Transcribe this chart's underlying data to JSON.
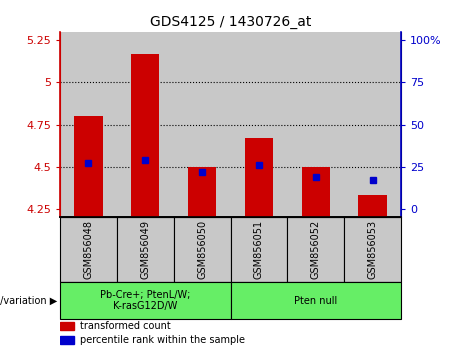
{
  "title": "GDS4125 / 1430726_at",
  "samples": [
    "GSM856048",
    "GSM856049",
    "GSM856050",
    "GSM856051",
    "GSM856052",
    "GSM856053"
  ],
  "red_values": [
    4.8,
    5.17,
    4.5,
    4.67,
    4.5,
    4.33
  ],
  "blue_values": [
    4.52,
    4.54,
    4.47,
    4.51,
    4.44,
    4.42
  ],
  "ylim": [
    4.2,
    5.3
  ],
  "yticks": [
    4.25,
    4.5,
    4.75,
    5.0,
    5.25
  ],
  "ytick_labels": [
    "4.25",
    "4.5",
    "4.75",
    "5",
    "5.25"
  ],
  "right_ytick_positions": [
    4.25,
    4.5,
    4.75,
    5.0,
    5.25
  ],
  "right_ytick_labels": [
    "0",
    "25",
    "50",
    "75",
    "100%"
  ],
  "gridlines": [
    4.5,
    4.75,
    5.0
  ],
  "bar_width": 0.5,
  "bar_color": "#cc0000",
  "dot_color": "#0000cc",
  "group1_label": "Pb-Cre+; PtenL/W;\nK-rasG12D/W",
  "group2_label": "Pten null",
  "group_bg_color": "#66ee66",
  "sample_bg_color": "#c8c8c8",
  "legend_red": "transformed count",
  "legend_blue": "percentile rank within the sample",
  "bottom_label": "genotype/variation",
  "fig_width": 4.61,
  "fig_height": 3.54,
  "dpi": 100
}
